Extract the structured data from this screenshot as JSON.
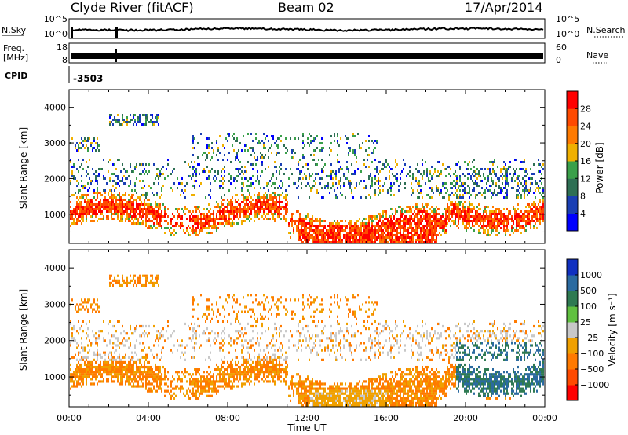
{
  "header": {
    "station": "Clyde River (fitACF)",
    "beam": "Beam 02",
    "date": "17/Apr/2014"
  },
  "colors": {
    "power": [
      "#0000ff",
      "#1a3fb4",
      "#2e6f54",
      "#3aa04a",
      "#f0b000",
      "#ff7a00",
      "#ff4a00",
      "#ff0000"
    ],
    "velocity": [
      "#ff0000",
      "#ff4a00",
      "#ff7a00",
      "#f0a000",
      "#c8c8c8",
      "#60c040",
      "#2e7a52",
      "#2a6aa0",
      "#1030c0"
    ],
    "trace": "#000000"
  },
  "chart_data": [
    {
      "type": "line",
      "panel": "noise",
      "left_label": "N.Sky",
      "right_label": "N.Search",
      "left_ticks": [
        "10^5",
        "10^0"
      ],
      "right_ticks": [
        "10^5",
        "10^0"
      ]
    },
    {
      "type": "line",
      "panel": "frequency",
      "left_label": "Freq.",
      "left_unit": "[MHz]",
      "right_label": "Nave",
      "left_ticks": [
        "18",
        "8"
      ],
      "right_ticks": [
        "60",
        "0"
      ]
    },
    {
      "type": "table",
      "panel": "cpid",
      "label": "CPID",
      "value": "-3503"
    },
    {
      "type": "heatmap",
      "panel": "power",
      "ylabel": "Slant Range [km]",
      "ylim": [
        180,
        4500
      ],
      "yticks": [
        "1000",
        "2000",
        "3000",
        "4000"
      ],
      "xlim": [
        0,
        24
      ],
      "xticks": [
        "00:00",
        "04:00",
        "08:00",
        "12:00",
        "16:00",
        "20:00",
        "00:00"
      ],
      "colorbar_label": "Power [dB]",
      "colorbar_ticks": [
        "4",
        "8",
        "12",
        "16",
        "20",
        "24",
        "28"
      ],
      "scale": [
        0,
        32
      ]
    },
    {
      "type": "heatmap",
      "panel": "velocity",
      "ylabel": "Slant Range [km]",
      "ylim": [
        180,
        4500
      ],
      "yticks": [
        "1000",
        "2000",
        "3000",
        "4000"
      ],
      "xlim": [
        0,
        24
      ],
      "xticks": [
        "00:00",
        "04:00",
        "08:00",
        "12:00",
        "16:00",
        "20:00",
        "00:00"
      ],
      "xlabel": "Time UT",
      "colorbar_label": "Velocity [m s⁻¹]",
      "colorbar_ticks": [
        "1000",
        "500",
        "100",
        "25",
        "−25",
        "−100",
        "−500",
        "−1000"
      ]
    }
  ]
}
